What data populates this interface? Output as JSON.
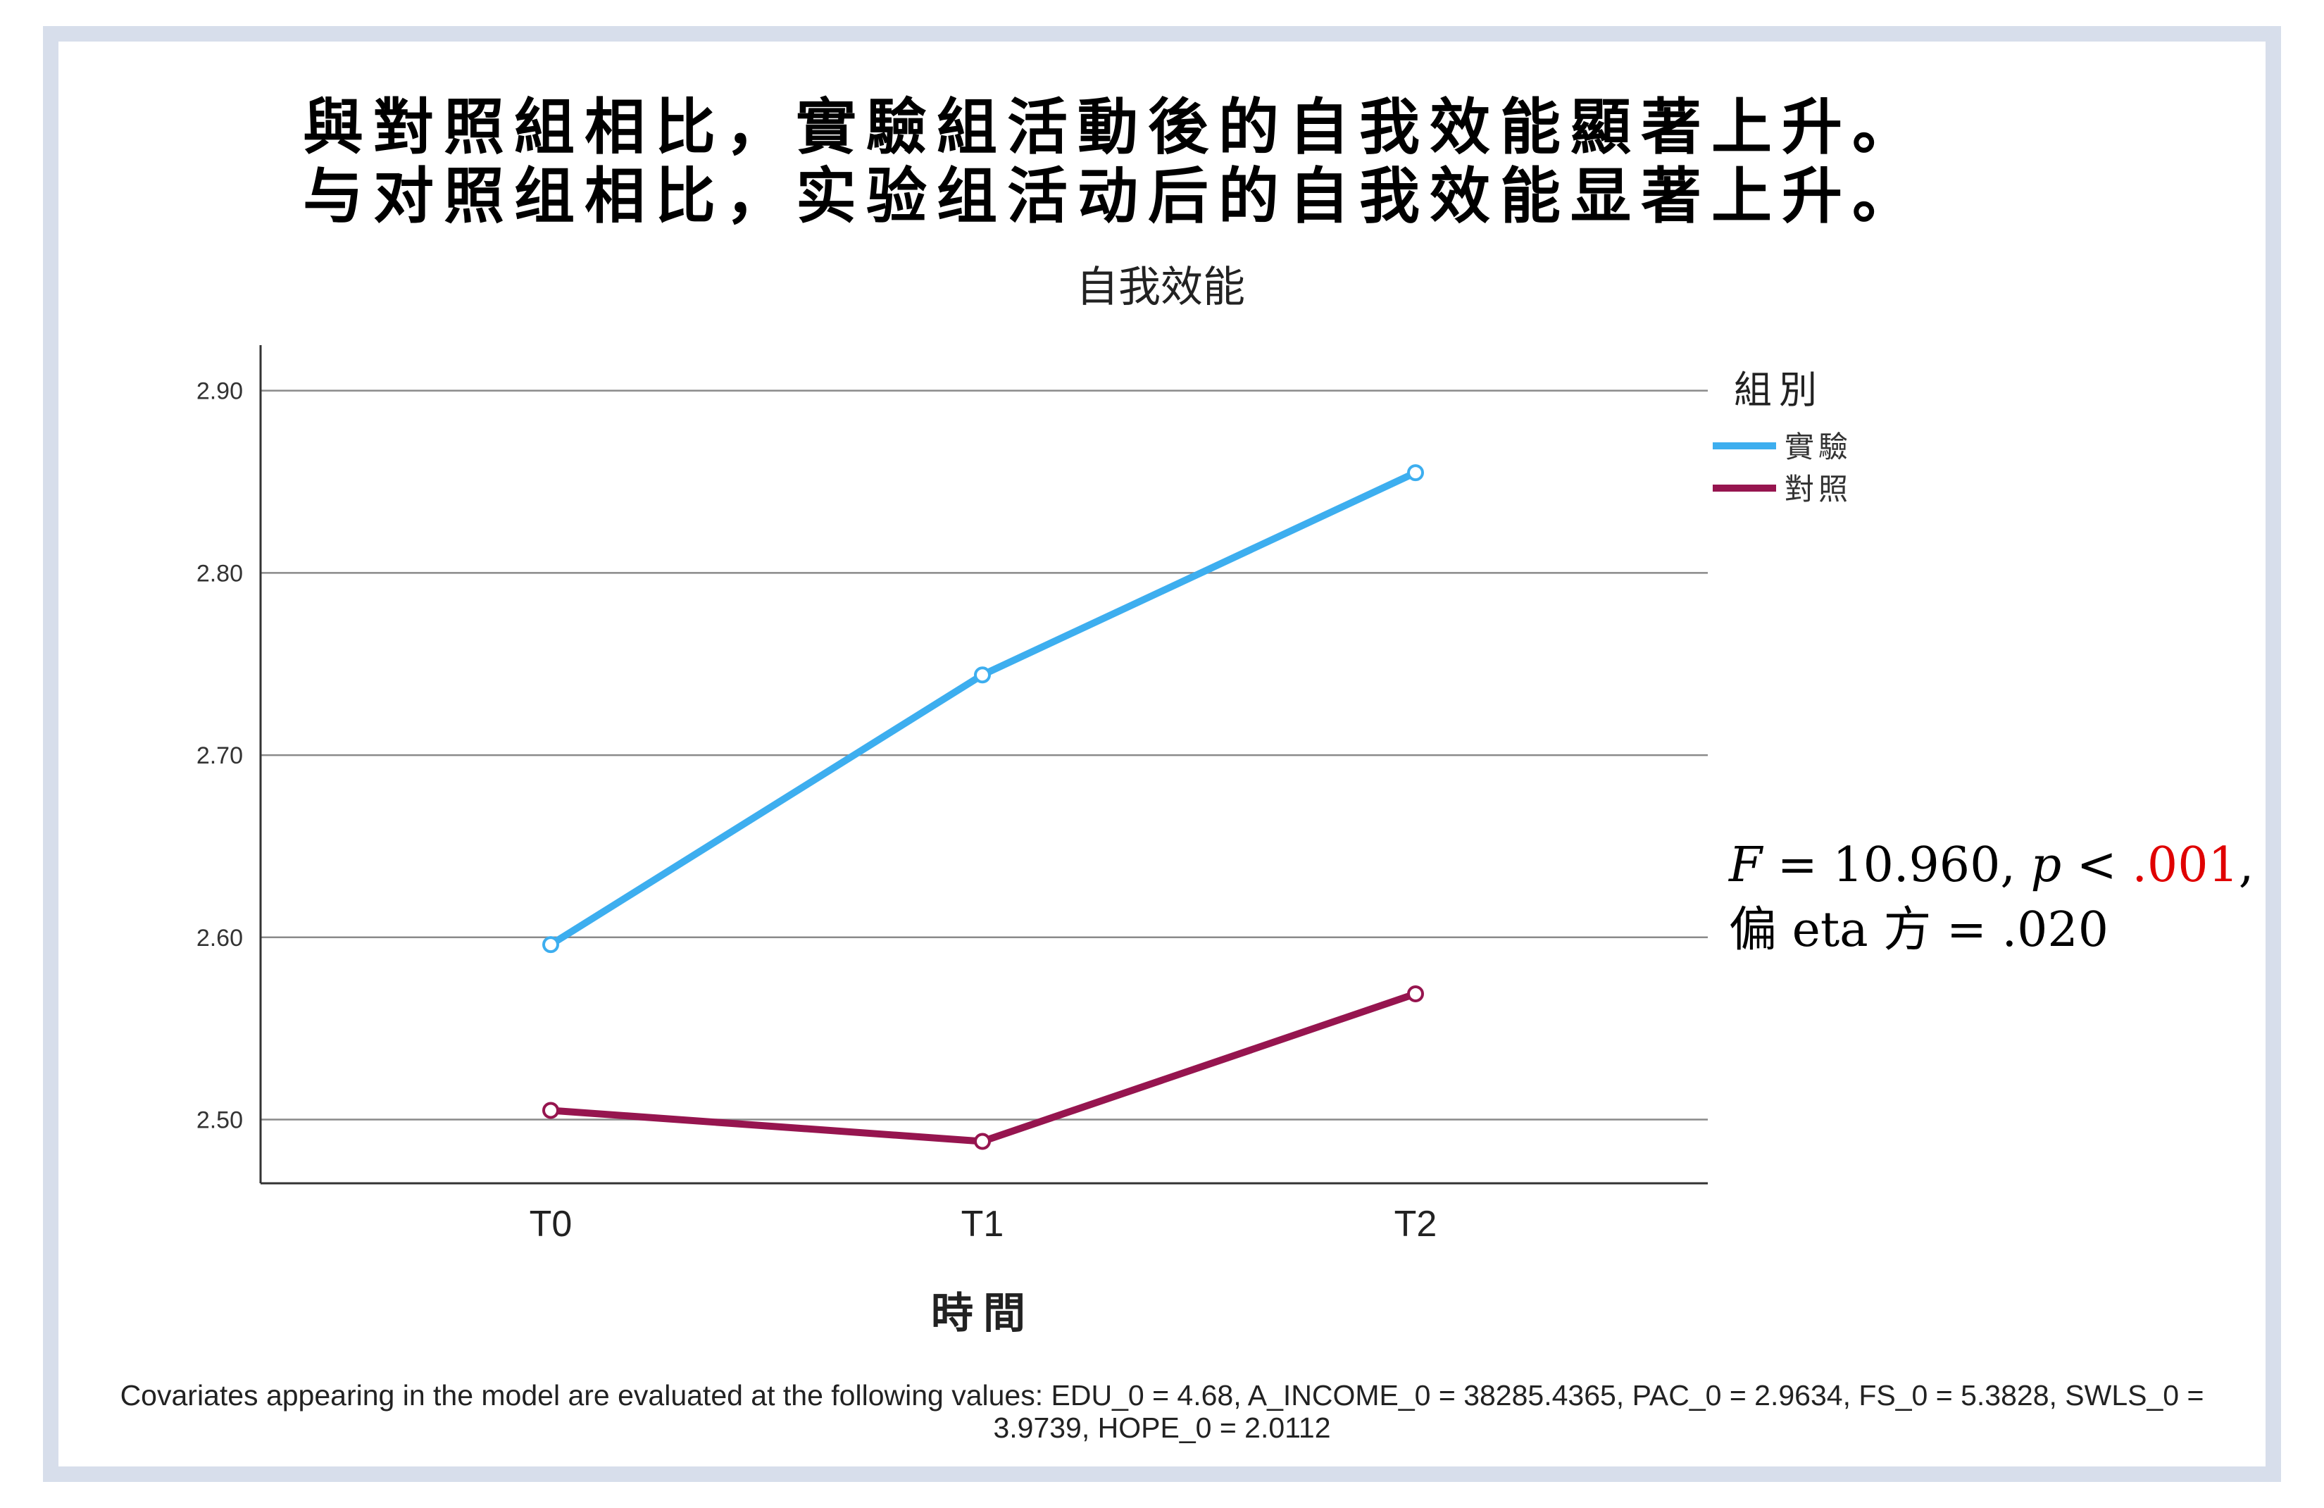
{
  "headings": {
    "traditional": "與對照組相比，實驗組活動後的自我效能顯著上升。",
    "simplified": "与对照组相比，实验组活动后的自我效能显著上升。"
  },
  "stats": {
    "f_label": "F",
    "f_value": " = 10.960, ",
    "p_label": "p",
    "p_op": " < ",
    "p_value": ".001",
    "p_tail": ",",
    "eta_label": "偏 eta 方",
    "eta_value": " = .020"
  },
  "footnote": "Covariates appearing in the model are evaluated at the following values: EDU_0 = 4.68, A_INCOME_0 = 38285.4365, PAC_0 = 2.9634, FS_0 = 5.3828, SWLS_0 = 3.9739, HOPE_0 = 2.0112",
  "chart_data": {
    "type": "line",
    "title": "自我效能",
    "xlabel": "時間",
    "ylabel": "",
    "categories": [
      "T0",
      "T1",
      "T2"
    ],
    "ylim": [
      2.465,
      2.925
    ],
    "yticks": [
      2.5,
      2.6,
      2.7,
      2.8,
      2.9
    ],
    "ytick_labels": [
      "2.50",
      "2.60",
      "2.70",
      "2.80",
      "2.90"
    ],
    "grid": true,
    "legend_title": "組別",
    "legend_position": "top-right",
    "series": [
      {
        "name": "實驗",
        "color": "#3daeef",
        "values": [
          2.596,
          2.744,
          2.855
        ]
      },
      {
        "name": "對照",
        "color": "#96154f",
        "values": [
          2.505,
          2.488,
          2.569
        ]
      }
    ]
  }
}
